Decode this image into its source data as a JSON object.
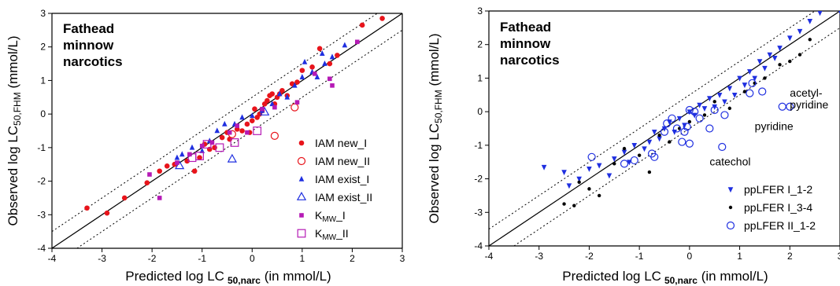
{
  "chart_data": [
    {
      "type": "scatter",
      "title_lines": [
        "Fathead",
        "minnow",
        "narcotics"
      ],
      "xlabel": "Predicted log LC",
      "xlabel_sub": "50,narc",
      "xlabel_tail": " (in mmol/L)",
      "ylabel": "Observed log LC",
      "ylabel_sub": "50,FHM",
      "ylabel_tail": " (mmol/L)",
      "xlim": [
        -4,
        3
      ],
      "ylim": [
        -4,
        3
      ],
      "xticks": [
        "-4",
        "-3",
        "-2",
        "-1",
        "0",
        "1",
        "2",
        "3"
      ],
      "yticks": [
        "-4",
        "-3",
        "-2",
        "-1",
        "0",
        "1",
        "2",
        "3"
      ],
      "reference_lines": [
        "1:1",
        "+0.5",
        "-0.5"
      ],
      "legend_position": "bottom-right",
      "series": [
        {
          "name": "IAM new_I",
          "marker": "filled-circle",
          "color": "#e8141b",
          "points": [
            [
              -3.3,
              -2.8
            ],
            [
              -2.9,
              -2.95
            ],
            [
              -2.55,
              -2.5
            ],
            [
              -2.1,
              -2.05
            ],
            [
              -1.85,
              -1.7
            ],
            [
              -1.7,
              -1.55
            ],
            [
              -1.55,
              -1.5
            ],
            [
              -1.3,
              -1.4
            ],
            [
              -1.15,
              -1.7
            ],
            [
              -1.05,
              -1.3
            ],
            [
              -0.95,
              -0.9
            ],
            [
              -0.85,
              -1.05
            ],
            [
              -0.75,
              -1.0
            ],
            [
              -0.6,
              -0.7
            ],
            [
              -0.5,
              -0.55
            ],
            [
              -0.45,
              -0.75
            ],
            [
              -0.3,
              -0.45
            ],
            [
              -0.2,
              -0.5
            ],
            [
              -0.1,
              -0.3
            ],
            [
              -0.05,
              -0.55
            ],
            [
              0.0,
              -0.2
            ],
            [
              0.05,
              0.15
            ],
            [
              0.1,
              -0.1
            ],
            [
              0.15,
              0.0
            ],
            [
              0.2,
              0.1
            ],
            [
              0.25,
              0.3
            ],
            [
              0.3,
              0.4
            ],
            [
              0.35,
              0.55
            ],
            [
              0.4,
              0.6
            ],
            [
              0.45,
              0.3
            ],
            [
              0.5,
              0.5
            ],
            [
              0.55,
              0.6
            ],
            [
              0.6,
              0.7
            ],
            [
              0.7,
              0.55
            ],
            [
              0.8,
              0.9
            ],
            [
              0.9,
              0.95
            ],
            [
              1.0,
              1.3
            ],
            [
              1.2,
              1.4
            ],
            [
              1.35,
              1.95
            ],
            [
              1.55,
              1.5
            ],
            [
              1.7,
              1.75
            ],
            [
              2.2,
              2.65
            ],
            [
              2.6,
              2.85
            ]
          ]
        },
        {
          "name": "IAM new_II",
          "marker": "open-circle",
          "color": "#e8141b",
          "points": [
            [
              -0.4,
              -0.6
            ],
            [
              0.45,
              -0.65
            ],
            [
              0.85,
              0.2
            ]
          ]
        },
        {
          "name": "IAM exist_I",
          "marker": "filled-triangle",
          "color": "#1f2fe0",
          "points": [
            [
              -1.5,
              -1.3
            ],
            [
              -1.4,
              -1.2
            ],
            [
              -1.2,
              -1.0
            ],
            [
              -1.0,
              -1.1
            ],
            [
              -0.85,
              -0.8
            ],
            [
              -0.7,
              -0.5
            ],
            [
              -0.55,
              -0.3
            ],
            [
              -0.35,
              -0.3
            ],
            [
              -0.2,
              -0.1
            ],
            [
              0.0,
              -0.05
            ],
            [
              0.2,
              0.1
            ],
            [
              0.4,
              0.3
            ],
            [
              0.55,
              0.6
            ],
            [
              0.7,
              0.5
            ],
            [
              0.85,
              0.85
            ],
            [
              1.0,
              1.1
            ],
            [
              1.05,
              1.55
            ],
            [
              1.2,
              1.25
            ],
            [
              1.3,
              1.1
            ],
            [
              1.45,
              1.5
            ],
            [
              1.6,
              1.7
            ],
            [
              1.85,
              2.05
            ],
            [
              1.4,
              1.8
            ]
          ]
        },
        {
          "name": "IAM exist_II",
          "marker": "open-triangle",
          "color": "#1f2fe0",
          "points": [
            [
              -1.45,
              -1.55
            ],
            [
              -0.4,
              -1.35
            ],
            [
              0.25,
              0.05
            ]
          ]
        },
        {
          "name": "K_MW_I",
          "marker": "filled-square",
          "color": "#b51ab5",
          "points": [
            [
              -2.05,
              -1.8
            ],
            [
              -1.85,
              -2.5
            ],
            [
              -1.5,
              -1.45
            ],
            [
              -1.25,
              -1.2
            ],
            [
              -1.0,
              -0.95
            ],
            [
              -0.8,
              -0.85
            ],
            [
              -0.45,
              -0.55
            ],
            [
              -0.3,
              -0.35
            ],
            [
              -0.1,
              -0.55
            ],
            [
              0.2,
              0.15
            ],
            [
              0.45,
              0.2
            ],
            [
              0.9,
              0.35
            ],
            [
              1.25,
              1.2
            ],
            [
              1.55,
              1.05
            ],
            [
              1.6,
              0.85
            ],
            [
              2.1,
              2.15
            ]
          ]
        },
        {
          "name": "K_MW_II",
          "marker": "open-square",
          "color": "#b51ab5",
          "points": [
            [
              -1.2,
              -1.3
            ],
            [
              -1.05,
              -1.25
            ],
            [
              -0.9,
              -0.9
            ],
            [
              -0.65,
              -1.0
            ],
            [
              -0.35,
              -0.85
            ],
            [
              0.1,
              -0.5
            ]
          ]
        }
      ]
    },
    {
      "type": "scatter",
      "title_lines": [
        "Fathead",
        "minnow",
        "narcotics"
      ],
      "xlabel": "Predicted log LC",
      "xlabel_sub": "50,narc",
      "xlabel_tail": " (in mmol/L)",
      "ylabel": "Observed log LC",
      "ylabel_sub": "50,FHM",
      "ylabel_tail": " (mmol/L)",
      "xlim": [
        -4,
        3
      ],
      "ylim": [
        -4,
        3
      ],
      "xticks": [
        "-4",
        "-3",
        "-2",
        "-1",
        "0",
        "1",
        "2",
        "3"
      ],
      "yticks": [
        "-4",
        "-3",
        "-2",
        "-1",
        "0",
        "1",
        "2",
        "3"
      ],
      "reference_lines": [
        "1:1",
        "+0.5",
        "-0.5"
      ],
      "legend_position": "bottom-right",
      "annotations": [
        {
          "text": "acetyl-",
          "x": 2.0,
          "y": 0.45
        },
        {
          "text": "pyridine",
          "x": 2.0,
          "y": 0.1
        },
        {
          "text": "pyridine",
          "x": 1.3,
          "y": -0.55
        },
        {
          "text": "catechol",
          "x": 0.4,
          "y": -1.6
        }
      ],
      "series": [
        {
          "name": "ppLFER I_1-2",
          "marker": "filled-down-triangle",
          "color": "#1f2fe0",
          "points": [
            [
              -2.9,
              -1.65
            ],
            [
              -2.5,
              -1.8
            ],
            [
              -2.4,
              -2.2
            ],
            [
              -2.2,
              -2.0
            ],
            [
              -2.0,
              -1.7
            ],
            [
              -1.8,
              -1.6
            ],
            [
              -1.6,
              -1.9
            ],
            [
              -1.5,
              -1.4
            ],
            [
              -1.3,
              -1.2
            ],
            [
              -1.2,
              -1.5
            ],
            [
              -1.1,
              -1.0
            ],
            [
              -0.9,
              -1.1
            ],
            [
              -0.8,
              -0.9
            ],
            [
              -0.7,
              -0.6
            ],
            [
              -0.6,
              -0.8
            ],
            [
              -0.5,
              -0.5
            ],
            [
              -0.4,
              -0.3
            ],
            [
              -0.3,
              -0.6
            ],
            [
              -0.2,
              -0.2
            ],
            [
              -0.1,
              -0.4
            ],
            [
              0.0,
              0.0
            ],
            [
              0.1,
              -0.1
            ],
            [
              0.2,
              0.2
            ],
            [
              0.3,
              0.1
            ],
            [
              0.4,
              0.4
            ],
            [
              0.5,
              0.15
            ],
            [
              0.6,
              0.5
            ],
            [
              0.7,
              0.3
            ],
            [
              0.8,
              0.7
            ],
            [
              0.9,
              0.5
            ],
            [
              1.0,
              1.0
            ],
            [
              1.1,
              0.8
            ],
            [
              1.2,
              1.2
            ],
            [
              1.3,
              1.0
            ],
            [
              1.4,
              1.5
            ],
            [
              1.5,
              1.3
            ],
            [
              1.6,
              1.7
            ],
            [
              1.7,
              1.6
            ],
            [
              1.8,
              1.9
            ],
            [
              2.0,
              2.2
            ],
            [
              2.2,
              2.4
            ],
            [
              2.4,
              2.7
            ],
            [
              2.6,
              2.95
            ],
            [
              3.0,
              3.0
            ]
          ]
        },
        {
          "name": "ppLFER I_3-4",
          "marker": "filled-dot",
          "color": "#000000",
          "points": [
            [
              -2.5,
              -2.75
            ],
            [
              -2.3,
              -2.8
            ],
            [
              -2.2,
              -2.1
            ],
            [
              -2.0,
              -2.3
            ],
            [
              -1.8,
              -2.5
            ],
            [
              -1.5,
              -1.55
            ],
            [
              -1.3,
              -1.1
            ],
            [
              -1.0,
              -1.3
            ],
            [
              -0.8,
              -1.8
            ],
            [
              -0.6,
              -0.7
            ],
            [
              -0.4,
              -0.9
            ],
            [
              -0.2,
              -0.5
            ],
            [
              0.0,
              -0.3
            ],
            [
              0.3,
              -0.1
            ],
            [
              0.5,
              0.3
            ],
            [
              0.8,
              0.1
            ],
            [
              1.1,
              0.6
            ],
            [
              1.3,
              0.85
            ],
            [
              1.5,
              1.0
            ],
            [
              1.8,
              1.4
            ],
            [
              2.0,
              1.5
            ],
            [
              2.2,
              1.7
            ],
            [
              2.4,
              2.15
            ]
          ]
        },
        {
          "name": "ppLFER II_1-2",
          "marker": "open-circle",
          "color": "#1f2fe0",
          "points": [
            [
              -1.95,
              -1.35
            ],
            [
              -1.3,
              -1.55
            ],
            [
              -1.1,
              -1.45
            ],
            [
              -0.75,
              -1.25
            ],
            [
              -0.7,
              -1.35
            ],
            [
              -0.5,
              -0.6
            ],
            [
              -0.45,
              -0.35
            ],
            [
              -0.35,
              -0.2
            ],
            [
              -0.25,
              -0.5
            ],
            [
              -0.15,
              -0.9
            ],
            [
              -0.1,
              -0.6
            ],
            [
              0.0,
              -0.95
            ],
            [
              -0.05,
              -0.45
            ],
            [
              0.0,
              0.05
            ],
            [
              0.1,
              0.0
            ],
            [
              0.2,
              -0.2
            ],
            [
              0.4,
              -0.5
            ],
            [
              0.5,
              0.05
            ],
            [
              0.65,
              -1.05
            ],
            [
              0.7,
              -0.1
            ],
            [
              1.2,
              0.55
            ],
            [
              1.25,
              0.85
            ],
            [
              1.45,
              0.6
            ],
            [
              1.85,
              0.15
            ],
            [
              2.0,
              0.15
            ]
          ]
        }
      ]
    }
  ]
}
